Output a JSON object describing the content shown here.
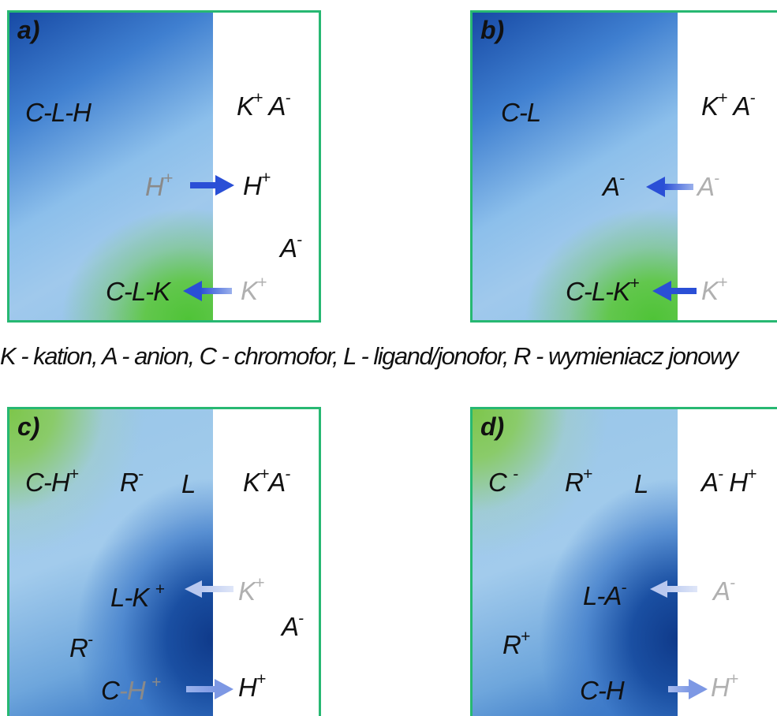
{
  "panels": {
    "a": {
      "tag": "a)",
      "left_main": "C-L-H",
      "right_top_k": "K",
      "right_top_a": "A",
      "h_from": "H",
      "h_to": "H",
      "a_right": "A",
      "complex": "C-L-K",
      "k_from": "K"
    },
    "b": {
      "tag": "b)",
      "left_main": "C-L",
      "right_top_k": "K",
      "right_top_a": "A",
      "a_left": "A",
      "a_from": "A",
      "complex": "C-L-K",
      "k_from": "K"
    },
    "c": {
      "tag": "c)",
      "ch": "C-H",
      "r": "R",
      "l": "L",
      "right_top_k": "K",
      "right_top_a": "A",
      "lk": "L-K",
      "k_from": "K",
      "r2": "R",
      "a_right": "A",
      "c": "C",
      "h_dim": "-H",
      "h_to": "H"
    },
    "d": {
      "tag": "d)",
      "c": "C",
      "r": "R",
      "l": "L",
      "right_top_a": "A",
      "right_top_h": "H",
      "la": "L-A",
      "a_from": "A",
      "r2": "R",
      "ch": "C-H",
      "h_to": "H"
    }
  },
  "legend": "K - kation, A - anion, C - chromofor, L - ligand/jonofor, R - wymieniacz jonowy",
  "colors": {
    "border": "#27b872",
    "arrow_strong": "#2a4fd6",
    "arrow_faded": "#8fa6e8",
    "green": "#4fc337",
    "dark_blue": "#174aa5"
  }
}
